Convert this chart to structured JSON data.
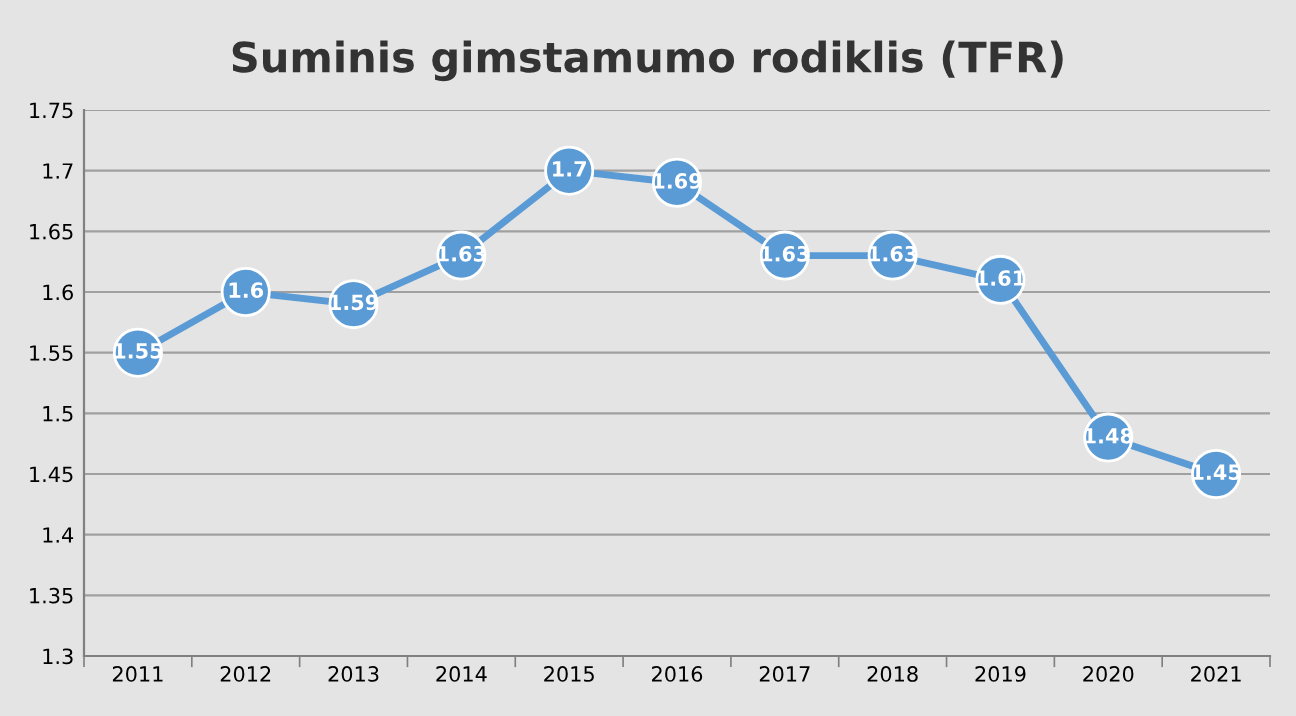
{
  "chart_data": {
    "type": "line",
    "title": "Suminis gimstamumo rodiklis (TFR)",
    "categories": [
      "2011",
      "2012",
      "2013",
      "2014",
      "2015",
      "2016",
      "2017",
      "2018",
      "2019",
      "2020",
      "2021"
    ],
    "series": [
      {
        "color": "#5b9bd5",
        "values": [
          1.55,
          1.6,
          1.59,
          1.63,
          1.7,
          1.69,
          1.63,
          1.63,
          1.61,
          1.48,
          1.45
        ]
      }
    ],
    "ylim": [
      1.3,
      1.75
    ],
    "yticks": [
      1.3,
      1.35,
      1.4,
      1.45,
      1.5,
      1.55,
      1.6,
      1.65,
      1.7,
      1.75
    ],
    "grid": "y",
    "marker": "circle",
    "data_labels": true,
    "legend": false
  }
}
